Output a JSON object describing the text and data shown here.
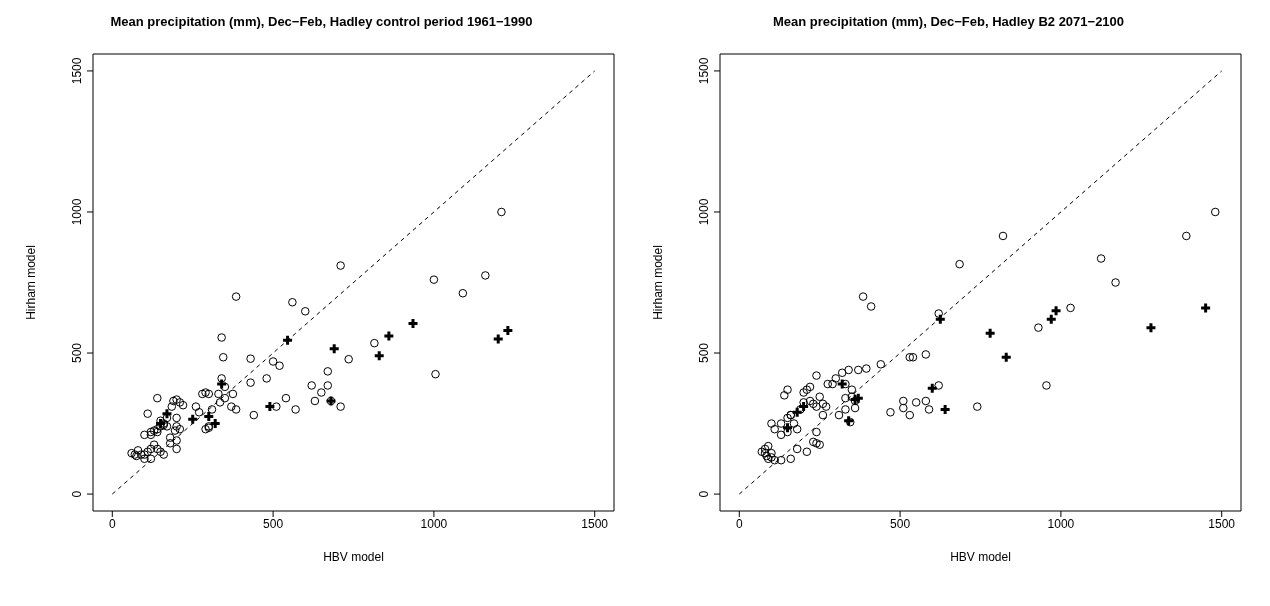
{
  "chart_data": [
    {
      "type": "scatter",
      "title": "Mean precipitation (mm), Dec−Feb, Hadley control period 1961−1990",
      "xlabel": "HBV model",
      "ylabel": "Hirham model",
      "xlim": [
        -60,
        1560
      ],
      "ylim": [
        -60,
        1560
      ],
      "xticks": [
        0,
        500,
        1000,
        1500
      ],
      "yticks": [
        0,
        500,
        1000,
        1500
      ],
      "grid": false,
      "legend": false,
      "series": [
        {
          "type": "scatter",
          "marker": "circle",
          "color": "#000000",
          "x": [
            1210,
            1000,
            1160,
            1090,
            1005,
            815,
            735,
            710,
            680,
            670,
            670,
            650,
            620,
            630,
            570,
            540,
            600,
            385,
            340,
            345,
            340,
            350,
            330,
            350,
            335,
            375,
            385,
            430,
            440,
            480,
            500,
            520,
            290,
            300,
            280,
            310,
            290,
            300,
            260,
            270,
            200,
            210,
            190,
            140,
            110,
            120,
            140,
            150,
            160,
            170,
            180,
            195,
            200,
            100,
            120,
            150,
            160,
            130,
            140,
            100,
            110,
            90,
            70,
            60,
            80,
            120,
            100,
            180,
            200,
            210
          ],
          "values": [
            1000,
            760,
            775,
            712,
            425,
            535,
            478,
            310,
            330,
            435,
            385,
            360,
            385,
            330,
            300,
            340,
            648,
            700,
            555,
            485,
            410,
            380,
            355,
            340,
            325,
            355,
            300,
            395,
            280,
            410,
            470,
            455,
            360,
            355,
            355,
            300,
            230,
            240,
            310,
            290,
            335,
            325,
            330,
            340,
            285,
            220,
            230,
            260,
            250,
            240,
            200,
            225,
            240,
            210,
            210,
            150,
            140,
            175,
            160,
            140,
            150,
            140,
            140,
            145,
            155,
            160,
            125,
            180,
            190,
            230
          ]
        },
        {
          "type": "scatter",
          "marker": "circle",
          "color": "#000000",
          "x": [
            710,
            560,
            430,
            370,
            510,
            300,
            200,
            120,
            200,
            185,
            220,
            170,
            150,
            160,
            140,
            130,
            75
          ],
          "values": [
            810,
            680,
            480,
            310,
            310,
            235,
            160,
            125,
            270,
            310,
            315,
            270,
            240,
            245,
            220,
            225,
            135
          ]
        },
        {
          "type": "scatter",
          "marker": "cross",
          "color": "#000000",
          "x": [
            1230,
            1200,
            935,
            860,
            830,
            690,
            680,
            545,
            490,
            320,
            300,
            250,
            170,
            150,
            340
          ],
          "values": [
            580,
            550,
            605,
            560,
            490,
            515,
            330,
            545,
            310,
            250,
            275,
            265,
            285,
            250,
            390
          ]
        },
        {
          "type": "line",
          "line_style": "dashed",
          "marker": "none",
          "color": "#000000",
          "x": [
            0,
            1500
          ],
          "values": [
            0,
            1500
          ]
        }
      ]
    },
    {
      "type": "scatter",
      "title": "Mean precipitation (mm), Dec−Feb, Hadley B2 2071−2100",
      "xlabel": "HBV model",
      "ylabel": "Hirham model",
      "xlim": [
        -60,
        1560
      ],
      "ylim": [
        -60,
        1560
      ],
      "xticks": [
        0,
        500,
        1000,
        1500
      ],
      "yticks": [
        0,
        500,
        1000,
        1500
      ],
      "grid": false,
      "legend": false,
      "series": [
        {
          "type": "scatter",
          "marker": "circle",
          "color": "#000000",
          "x": [
            1480,
            1390,
            1125,
            1170,
            930,
            1030,
            955,
            740,
            620,
            620,
            580,
            385,
            410,
            440,
            470,
            530,
            540,
            590,
            580,
            550,
            510,
            530,
            320,
            290,
            340,
            350,
            360,
            370,
            220,
            240,
            250,
            210,
            260,
            270,
            150,
            140,
            160,
            170,
            180,
            130,
            100,
            110,
            190,
            200,
            130,
            150,
            240,
            180,
            210,
            250,
            90,
            80,
            70,
            100,
            90,
            110,
            130,
            330,
            300,
            330,
            350,
            310,
            330,
            345,
            260,
            240
          ],
          "values": [
            1000,
            915,
            835,
            750,
            590,
            660,
            385,
            310,
            640,
            385,
            495,
            700,
            665,
            460,
            290,
            485,
            485,
            300,
            330,
            325,
            330,
            280,
            430,
            390,
            440,
            370,
            330,
            440,
            380,
            420,
            345,
            370,
            320,
            310,
            370,
            350,
            280,
            250,
            230,
            250,
            250,
            230,
            300,
            360,
            210,
            220,
            220,
            160,
            150,
            175,
            170,
            160,
            150,
            130,
            125,
            120,
            120,
            340,
            410,
            390,
            345,
            280,
            300,
            255,
            280,
            310
          ]
        },
        {
          "type": "scatter",
          "marker": "circle",
          "color": "#000000",
          "x": [
            820,
            685,
            395,
            275,
            360,
            510,
            240,
            160,
            150,
            200,
            220,
            230,
            160,
            80,
            85,
            100,
            230
          ],
          "values": [
            915,
            815,
            445,
            390,
            305,
            305,
            180,
            125,
            270,
            325,
            330,
            320,
            280,
            145,
            135,
            145,
            185
          ]
        },
        {
          "type": "scatter",
          "marker": "cross",
          "color": "#000000",
          "x": [
            1450,
            1280,
            970,
            985,
            830,
            780,
            640,
            600,
            625,
            320,
            370,
            180,
            200,
            360,
            150,
            340
          ],
          "values": [
            660,
            590,
            620,
            650,
            485,
            570,
            300,
            375,
            620,
            390,
            340,
            290,
            310,
            335,
            235,
            260
          ]
        },
        {
          "type": "line",
          "line_style": "dashed",
          "marker": "none",
          "color": "#000000",
          "x": [
            0,
            1500
          ],
          "values": [
            0,
            1500
          ]
        }
      ]
    }
  ]
}
